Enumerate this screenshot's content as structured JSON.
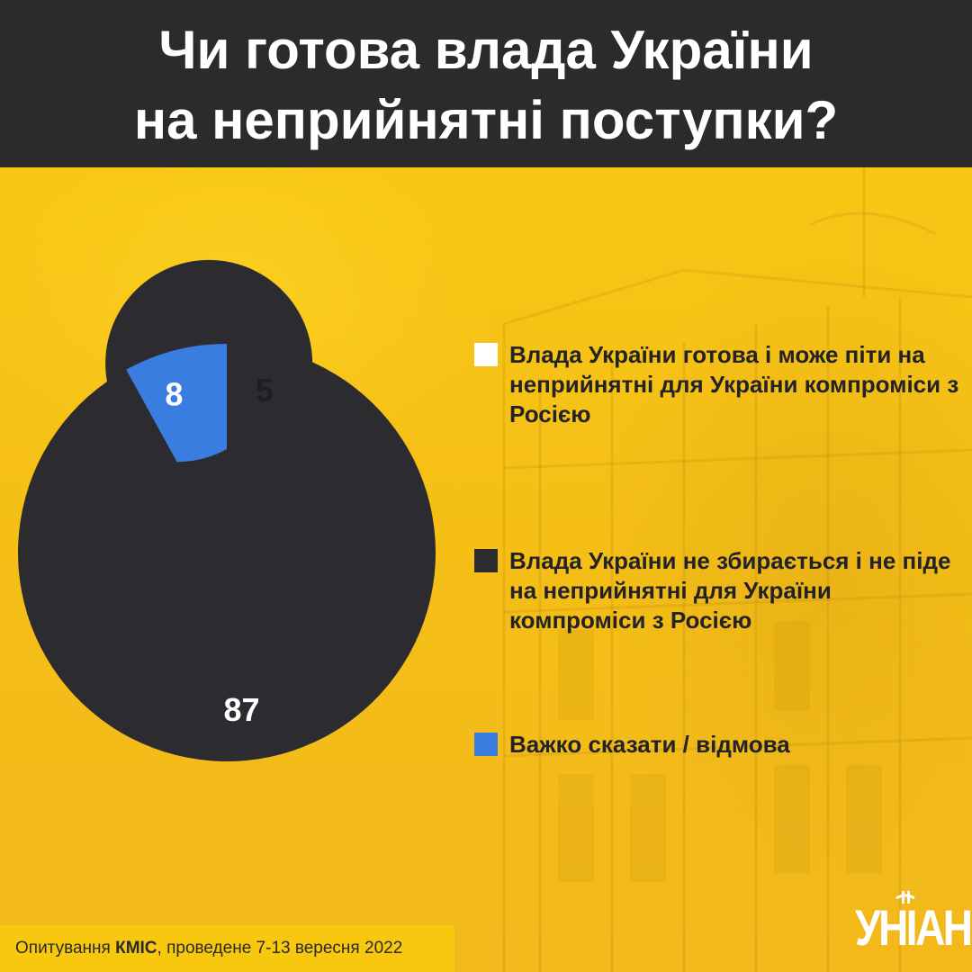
{
  "title": {
    "line1": "Чи готова влада України",
    "line2": "на неприйнятні поступки?"
  },
  "chart_data": {
    "type": "pie",
    "donut": true,
    "categories": [
      "Влада України готова і може піти на неприйнятні для України компроміси з Росією",
      "Влада України не збирається і не піде на неприйнятні для України компроміси з Росією",
      "Важко сказати / відмова"
    ],
    "values": [
      5,
      87,
      8
    ],
    "colors": [
      "#ffffff",
      "#2c2c30",
      "#3a7de0"
    ],
    "label_colors": [
      "#1f1f21",
      "#ffffff",
      "#ffffff"
    ],
    "legend_position": "right"
  },
  "legend": [
    {
      "label": "Влада України готова і може піти на неприйнятні для України компроміси з Росією",
      "color": "#ffffff"
    },
    {
      "label": "Влада України не збирається і не піде на неприйнятні для України компроміси з Росією",
      "color": "#2c2c30"
    },
    {
      "label": "Важко сказати / відмова",
      "color": "#3a7de0"
    }
  ],
  "footer": {
    "prefix": "Опитування ",
    "org": "КМІС",
    "suffix": ", проведене 7-13 вересня 2022"
  },
  "logo": {
    "text": "УНІАН"
  }
}
